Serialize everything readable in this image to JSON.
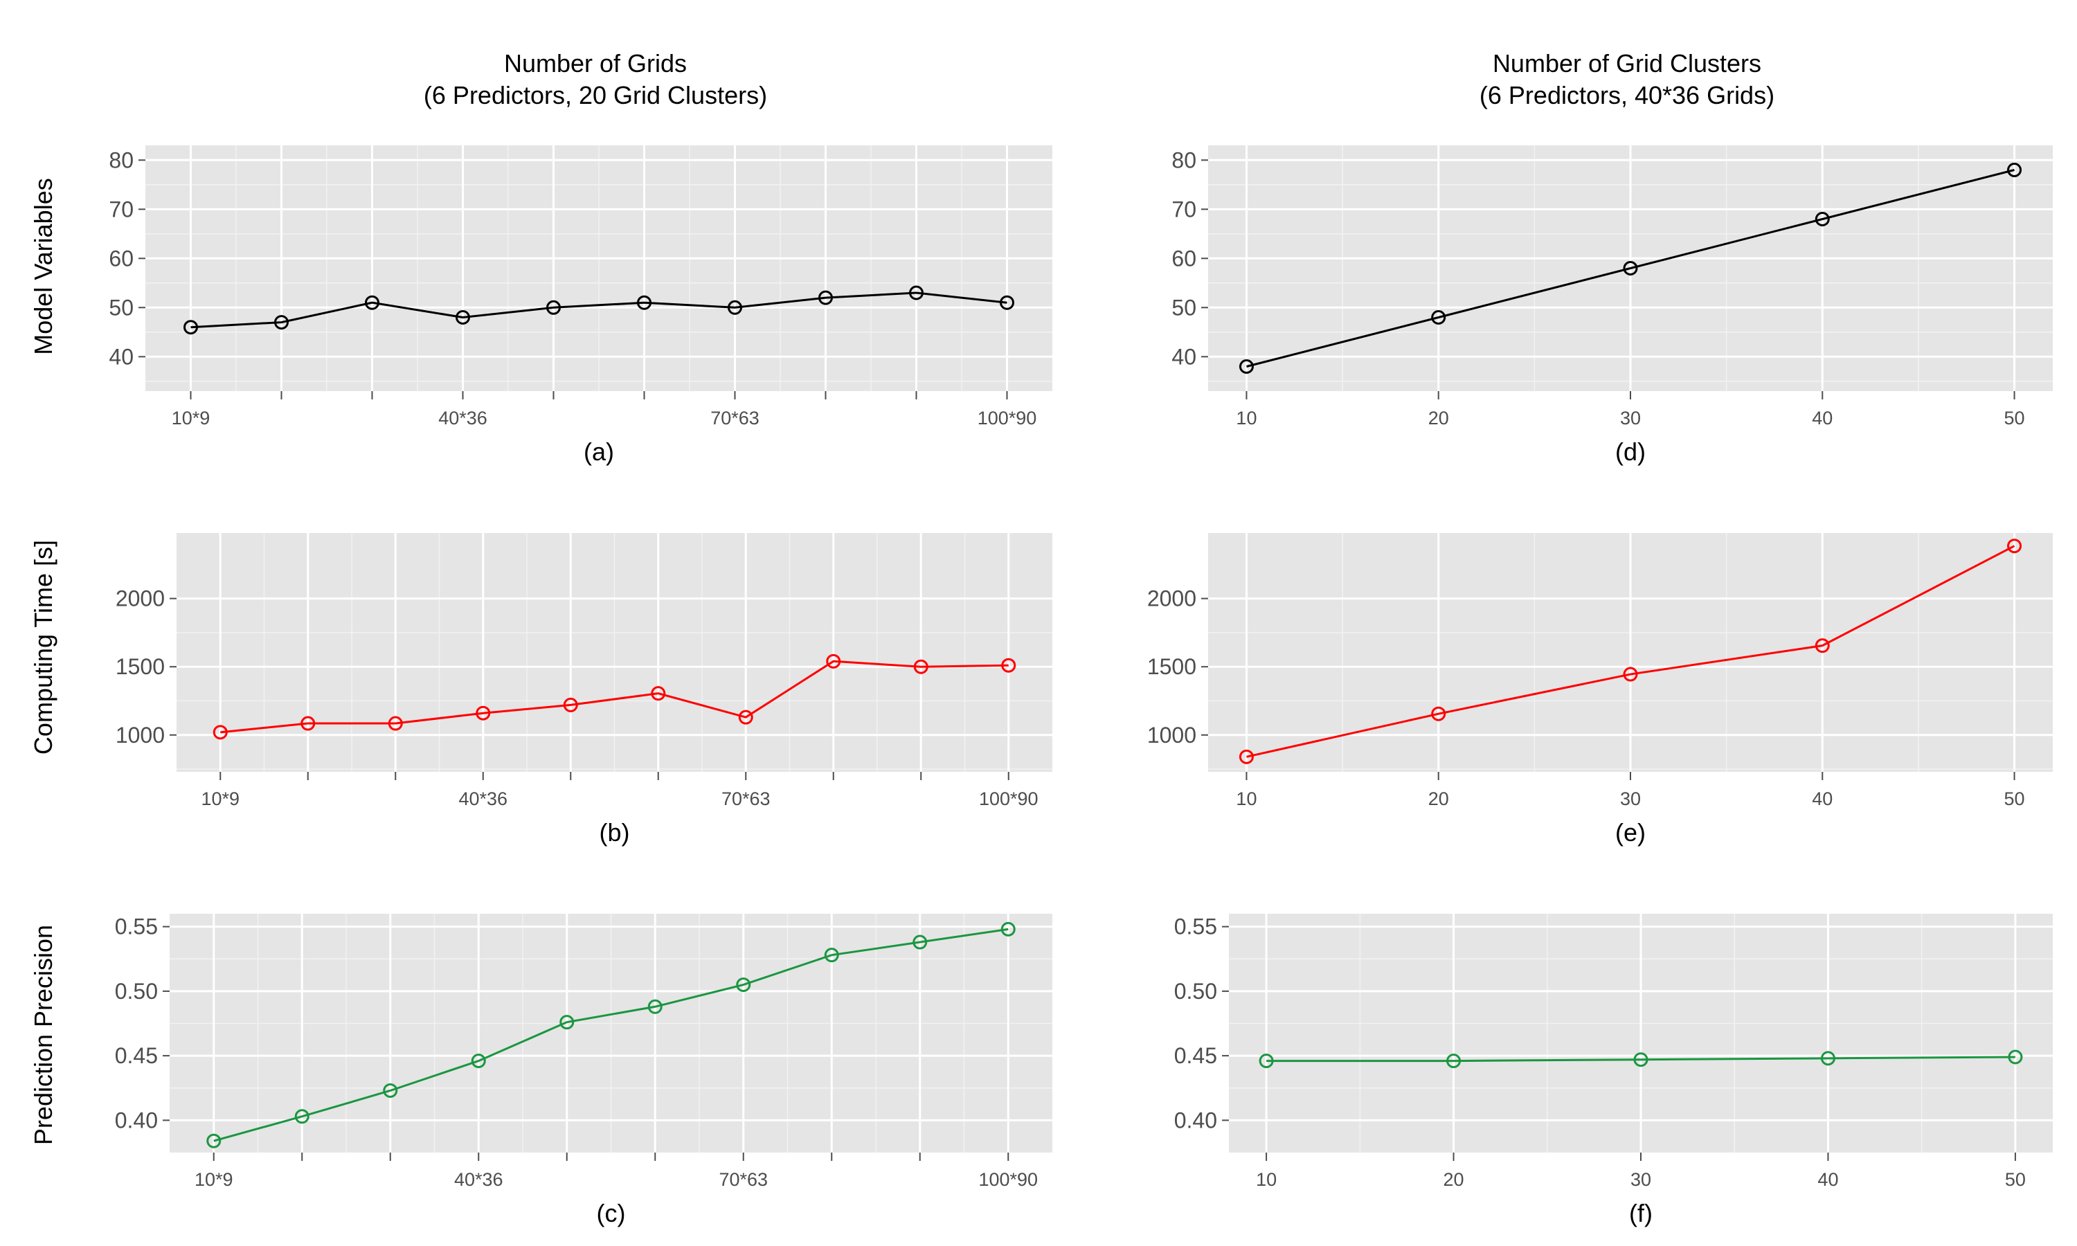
{
  "figure": {
    "column_titles": [
      [
        "Number of Grids",
        "(6 Predictors, 20 Grid Clusters)"
      ],
      [
        "Number of Grid Clusters",
        "(6 Predictors, 40*36 Grids)"
      ]
    ],
    "row_labels": [
      "Model Variables",
      "Computing Time [s]",
      "Prediction Precision"
    ]
  },
  "chart_data": [
    {
      "panel": "(a)",
      "type": "line",
      "color": "#000000",
      "x": [
        "10*9",
        "",
        "",
        "40*36",
        "",
        "",
        "70*63",
        "",
        "",
        "100*90"
      ],
      "y": [
        46,
        47,
        51,
        48,
        50,
        51,
        50,
        52,
        53,
        51
      ],
      "ylim": [
        33,
        83
      ],
      "yticks": [
        40,
        50,
        60,
        70,
        80
      ]
    },
    {
      "panel": "(b)",
      "type": "line",
      "color": "#ff0000",
      "x": [
        "10*9",
        "",
        "",
        "40*36",
        "",
        "",
        "70*63",
        "",
        "",
        "100*90"
      ],
      "y": [
        1020,
        1085,
        1085,
        1160,
        1220,
        1305,
        1130,
        1540,
        1500,
        1510
      ],
      "ylim": [
        730,
        2480
      ],
      "yticks": [
        1000,
        1500,
        2000
      ]
    },
    {
      "panel": "(c)",
      "type": "line",
      "color": "#1a9641",
      "x": [
        "10*9",
        "",
        "",
        "40*36",
        "",
        "",
        "70*63",
        "",
        "",
        "100*90"
      ],
      "y": [
        0.384,
        0.403,
        0.423,
        0.446,
        0.476,
        0.488,
        0.505,
        0.528,
        0.538,
        0.548
      ],
      "ylim": [
        0.375,
        0.56
      ],
      "yticks": [
        0.4,
        0.45,
        0.5,
        0.55
      ]
    },
    {
      "panel": "(d)",
      "type": "line",
      "color": "#000000",
      "x": [
        10,
        20,
        30,
        40,
        50
      ],
      "y": [
        38,
        48,
        58,
        68,
        78
      ],
      "ylim": [
        33,
        83
      ],
      "yticks": [
        40,
        50,
        60,
        70,
        80
      ],
      "xlim": [
        8,
        52
      ],
      "xticks": [
        10,
        20,
        30,
        40,
        50
      ]
    },
    {
      "panel": "(e)",
      "type": "line",
      "color": "#ff0000",
      "x": [
        10,
        20,
        30,
        40,
        50
      ],
      "y": [
        840,
        1155,
        1445,
        1655,
        2385
      ],
      "ylim": [
        730,
        2480
      ],
      "yticks": [
        1000,
        1500,
        2000
      ],
      "xlim": [
        8,
        52
      ],
      "xticks": [
        10,
        20,
        30,
        40,
        50
      ]
    },
    {
      "panel": "(f)",
      "type": "line",
      "color": "#1a9641",
      "x": [
        10,
        20,
        30,
        40,
        50
      ],
      "y": [
        0.446,
        0.446,
        0.447,
        0.448,
        0.449
      ],
      "ylim": [
        0.375,
        0.56
      ],
      "yticks": [
        0.4,
        0.45,
        0.5,
        0.55
      ],
      "xlim": [
        8,
        52
      ],
      "xticks": [
        10,
        20,
        30,
        40,
        50
      ]
    }
  ]
}
